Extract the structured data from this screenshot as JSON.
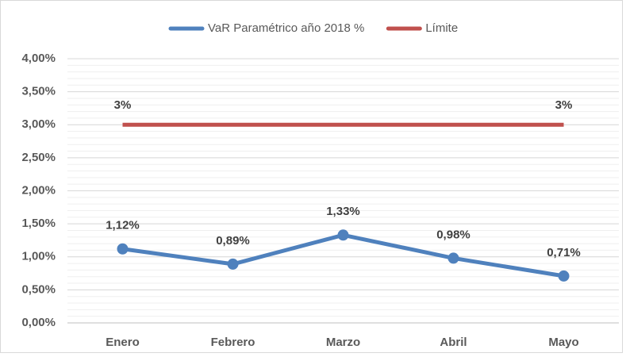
{
  "chart_data": {
    "type": "line",
    "categories": [
      "Enero",
      "Febrero",
      "Marzo",
      "Abril",
      "Mayo"
    ],
    "series": [
      {
        "name": "VaR Paramétrico año 2018 %",
        "color": "#4f81bd",
        "marker": true,
        "values": [
          1.12,
          0.89,
          1.33,
          0.98,
          0.71
        ],
        "value_labels": [
          "1,12%",
          "0,89%",
          "1,33%",
          "0,98%",
          "0,71%"
        ]
      },
      {
        "name": "Límite",
        "color": "#c0504d",
        "marker": false,
        "values": [
          3,
          3,
          3,
          3,
          3
        ],
        "value_labels": [
          "3%",
          null,
          null,
          null,
          "3%"
        ]
      }
    ],
    "ylim": [
      0,
      4
    ],
    "yticks": [
      {
        "value": 0,
        "label": "0,00%"
      },
      {
        "value": 0.5,
        "label": "0,50%"
      },
      {
        "value": 1,
        "label": "1,00%"
      },
      {
        "value": 1.5,
        "label": "1,50%"
      },
      {
        "value": 2,
        "label": "2,00%"
      },
      {
        "value": 2.5,
        "label": "2,50%"
      },
      {
        "value": 3,
        "label": "3,00%"
      },
      {
        "value": 3.5,
        "label": "3,50%"
      },
      {
        "value": 4,
        "label": "4,00%"
      }
    ],
    "grid": true,
    "minor_grid": true,
    "legend": "top"
  }
}
